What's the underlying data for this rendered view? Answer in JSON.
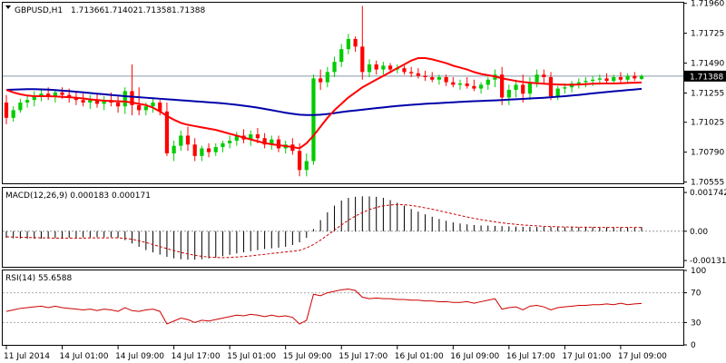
{
  "chart_data": [
    {
      "type": "candlestick",
      "symbol": "GBPUSD,H1",
      "ohlc_readout": [
        "1.71366",
        "1.71402",
        "1.71358",
        "1.71388"
      ],
      "current_price": 1.71388,
      "current_price_label": "1.71388",
      "ylim": [
        1.70545,
        1.71965
      ],
      "y_ticks": [
        1.7196,
        1.71725,
        1.7149,
        1.71255,
        1.71025,
        1.7079,
        1.70555
      ],
      "y_tick_labels": [
        "1.71960",
        "1.71725",
        "1.71490",
        "1.71255",
        "1.71025",
        "1.70790",
        "1.70555"
      ],
      "x_tick_labels": [
        "11 Jul 2014",
        "14 Jul 01:00",
        "14 Jul 09:00",
        "14 Jul 17:00",
        "15 Jul 01:00",
        "15 Jul 09:00",
        "15 Jul 17:00",
        "16 Jul 01:00",
        "16 Jul 09:00",
        "16 Jul 17:00",
        "17 Jul 01:00",
        "17 Jul 09:00"
      ],
      "x_tick_bar_index": [
        0,
        8,
        16,
        24,
        32,
        40,
        48,
        56,
        64,
        72,
        80,
        88
      ],
      "colors": {
        "bull": "#00cc00",
        "bear": "#ff0000",
        "fast_ma": "#ff0000",
        "slow_ma": "#0000aa",
        "price_line": "#8899aa"
      },
      "candles": [
        [
          1.7118,
          1.7124,
          1.7101,
          1.7106
        ],
        [
          1.7106,
          1.7115,
          1.7103,
          1.7112
        ],
        [
          1.7112,
          1.7121,
          1.711,
          1.7118
        ],
        [
          1.7118,
          1.7124,
          1.7114,
          1.712
        ],
        [
          1.712,
          1.7127,
          1.7115,
          1.7123
        ],
        [
          1.7123,
          1.7129,
          1.7119,
          1.7125
        ],
        [
          1.7125,
          1.713,
          1.712,
          1.7123
        ],
        [
          1.7123,
          1.7128,
          1.7118,
          1.7126
        ],
        [
          1.7126,
          1.713,
          1.7121,
          1.7124
        ],
        [
          1.7124,
          1.7129,
          1.7118,
          1.7122
        ],
        [
          1.7122,
          1.7127,
          1.7116,
          1.712
        ],
        [
          1.712,
          1.7125,
          1.7115,
          1.7118
        ],
        [
          1.7118,
          1.7124,
          1.7113,
          1.712
        ],
        [
          1.712,
          1.7125,
          1.7114,
          1.7117
        ],
        [
          1.7117,
          1.7123,
          1.7112,
          1.712
        ],
        [
          1.712,
          1.7126,
          1.7115,
          1.7118
        ],
        [
          1.7118,
          1.7124,
          1.711,
          1.7115
        ],
        [
          1.7115,
          1.713,
          1.7109,
          1.7127
        ],
        [
          1.7127,
          1.7148,
          1.7108,
          1.7116
        ],
        [
          1.7116,
          1.713,
          1.7108,
          1.7112
        ],
        [
          1.7112,
          1.7118,
          1.7108,
          1.7115
        ],
        [
          1.7115,
          1.7122,
          1.711,
          1.7118
        ],
        [
          1.7118,
          1.712,
          1.7108,
          1.7111
        ],
        [
          1.7111,
          1.7118,
          1.7076,
          1.7078
        ],
        [
          1.7078,
          1.7088,
          1.7072,
          1.7084
        ],
        [
          1.7084,
          1.7096,
          1.708,
          1.7092
        ],
        [
          1.7092,
          1.7099,
          1.708,
          1.7085
        ],
        [
          1.7085,
          1.709,
          1.7072,
          1.7076
        ],
        [
          1.7076,
          1.7084,
          1.7072,
          1.7082
        ],
        [
          1.7082,
          1.7086,
          1.7075,
          1.7079
        ],
        [
          1.7079,
          1.7086,
          1.7076,
          1.7083
        ],
        [
          1.7083,
          1.7088,
          1.7079,
          1.7086
        ],
        [
          1.7086,
          1.7092,
          1.7082,
          1.7088
        ],
        [
          1.7088,
          1.7095,
          1.7084,
          1.7092
        ],
        [
          1.7092,
          1.7097,
          1.7086,
          1.7089
        ],
        [
          1.7089,
          1.7096,
          1.7084,
          1.7093
        ],
        [
          1.7093,
          1.7098,
          1.7086,
          1.709
        ],
        [
          1.709,
          1.7094,
          1.7082,
          1.7085
        ],
        [
          1.7085,
          1.7092,
          1.7081,
          1.7089
        ],
        [
          1.7089,
          1.7092,
          1.7079,
          1.7082
        ],
        [
          1.7082,
          1.7088,
          1.7078,
          1.7085
        ],
        [
          1.7085,
          1.709,
          1.7077,
          1.708
        ],
        [
          1.708,
          1.7086,
          1.706,
          1.7065
        ],
        [
          1.7065,
          1.7078,
          1.706,
          1.7072
        ],
        [
          1.7072,
          1.714,
          1.7069,
          1.7137
        ],
        [
          1.7137,
          1.7144,
          1.7128,
          1.7134
        ],
        [
          1.7134,
          1.7146,
          1.713,
          1.7142
        ],
        [
          1.7142,
          1.7154,
          1.7138,
          1.715
        ],
        [
          1.715,
          1.7164,
          1.7146,
          1.716
        ],
        [
          1.716,
          1.7172,
          1.7156,
          1.7168
        ],
        [
          1.7168,
          1.717,
          1.7158,
          1.7162
        ],
        [
          1.7162,
          1.7194,
          1.7136,
          1.7142
        ],
        [
          1.7142,
          1.7152,
          1.7138,
          1.7148
        ],
        [
          1.7148,
          1.7151,
          1.714,
          1.7144
        ],
        [
          1.7144,
          1.715,
          1.714,
          1.7147
        ],
        [
          1.7147,
          1.7149,
          1.7141,
          1.7144
        ],
        [
          1.7144,
          1.7148,
          1.7141,
          1.7145
        ],
        [
          1.7145,
          1.7147,
          1.714,
          1.7142
        ],
        [
          1.7142,
          1.7146,
          1.7138,
          1.7141
        ],
        [
          1.7141,
          1.7145,
          1.7137,
          1.7139
        ],
        [
          1.7139,
          1.7143,
          1.7135,
          1.7138
        ],
        [
          1.7138,
          1.7142,
          1.7134,
          1.7136
        ],
        [
          1.7136,
          1.714,
          1.7132,
          1.7138
        ],
        [
          1.7138,
          1.714,
          1.7131,
          1.7134
        ],
        [
          1.7134,
          1.7138,
          1.713,
          1.7132
        ],
        [
          1.7132,
          1.7136,
          1.7128,
          1.7133
        ],
        [
          1.7133,
          1.7138,
          1.7129,
          1.7131
        ],
        [
          1.7131,
          1.7136,
          1.7127,
          1.7129
        ],
        [
          1.7129,
          1.7134,
          1.7125,
          1.7132
        ],
        [
          1.7132,
          1.7138,
          1.7128,
          1.7136
        ],
        [
          1.7136,
          1.7144,
          1.713,
          1.714
        ],
        [
          1.714,
          1.7146,
          1.7116,
          1.7122
        ],
        [
          1.7122,
          1.7132,
          1.7116,
          1.7128
        ],
        [
          1.7128,
          1.7136,
          1.7122,
          1.7132
        ],
        [
          1.7132,
          1.714,
          1.7118,
          1.7125
        ],
        [
          1.7125,
          1.7138,
          1.712,
          1.7134
        ],
        [
          1.7134,
          1.7144,
          1.713,
          1.714
        ],
        [
          1.714,
          1.7144,
          1.7133,
          1.7138
        ],
        [
          1.7138,
          1.7142,
          1.712,
          1.7123
        ],
        [
          1.7123,
          1.7131,
          1.712,
          1.7129
        ],
        [
          1.7129,
          1.7133,
          1.7125,
          1.713
        ],
        [
          1.713,
          1.7135,
          1.7126,
          1.7133
        ],
        [
          1.7133,
          1.7137,
          1.7129,
          1.7134
        ],
        [
          1.7134,
          1.7138,
          1.713,
          1.7135
        ],
        [
          1.7135,
          1.7139,
          1.7131,
          1.7136
        ],
        [
          1.7136,
          1.714,
          1.7132,
          1.7137
        ],
        [
          1.7137,
          1.7141,
          1.7133,
          1.7135
        ],
        [
          1.7135,
          1.714,
          1.7133,
          1.7138
        ],
        [
          1.7138,
          1.7142,
          1.7134,
          1.7136
        ],
        [
          1.7136,
          1.7141,
          1.7133,
          1.7139
        ],
        [
          1.7139,
          1.7142,
          1.7135,
          1.7137
        ],
        [
          1.71366,
          1.71402,
          1.71358,
          1.71388
        ]
      ],
      "fast_ma": [
        1.7128,
        1.7126,
        1.71245,
        1.71235,
        1.7123,
        1.7123,
        1.7123,
        1.71228,
        1.71225,
        1.71222,
        1.71218,
        1.71212,
        1.71205,
        1.712,
        1.71195,
        1.71192,
        1.7119,
        1.71188,
        1.7118,
        1.7117,
        1.7116,
        1.7114,
        1.7111,
        1.71075,
        1.71045,
        1.7102,
        1.71005,
        1.70995,
        1.70985,
        1.70975,
        1.70965,
        1.7095,
        1.70935,
        1.7092,
        1.70905,
        1.7089,
        1.70875,
        1.70862,
        1.70852,
        1.70845,
        1.70838,
        1.7083,
        1.7082,
        1.7086,
        1.7092,
        1.7099,
        1.7106,
        1.7112,
        1.7117,
        1.7122,
        1.7126,
        1.713,
        1.7133,
        1.7136,
        1.7139,
        1.7142,
        1.7145,
        1.7148,
        1.7151,
        1.7153,
        1.7153,
        1.7152,
        1.71505,
        1.7149,
        1.7147,
        1.71455,
        1.7144,
        1.7142,
        1.71405,
        1.71395,
        1.71385,
        1.7137,
        1.7136,
        1.7135,
        1.71342,
        1.71336,
        1.71332,
        1.71328,
        1.71325,
        1.71322,
        1.7132,
        1.7132,
        1.71322,
        1.71325,
        1.71328,
        1.7133,
        1.7133,
        1.7133,
        1.71332,
        1.71334,
        1.71336,
        1.71338
      ],
      "slow_ma": [
        1.7128,
        1.71282,
        1.71284,
        1.71285,
        1.71285,
        1.71284,
        1.71282,
        1.71278,
        1.71274,
        1.7127,
        1.71265,
        1.7126,
        1.71255,
        1.7125,
        1.71245,
        1.7124,
        1.71235,
        1.7123,
        1.71226,
        1.71222,
        1.71218,
        1.71214,
        1.7121,
        1.71206,
        1.71202,
        1.71198,
        1.71194,
        1.7119,
        1.71186,
        1.71182,
        1.71178,
        1.71174,
        1.71168,
        1.71162,
        1.71155,
        1.71148,
        1.7114,
        1.7113,
        1.7112,
        1.7111,
        1.711,
        1.71092,
        1.71085,
        1.71082,
        1.71082,
        1.71085,
        1.7109,
        1.71097,
        1.71105,
        1.71112,
        1.71118,
        1.71124,
        1.7113,
        1.71136,
        1.71142,
        1.71148,
        1.71153,
        1.71158,
        1.71162,
        1.71166,
        1.7117,
        1.71173,
        1.71176,
        1.71179,
        1.71182,
        1.71185,
        1.71188,
        1.71191,
        1.71193,
        1.71195,
        1.71197,
        1.712,
        1.71203,
        1.71206,
        1.71209,
        1.71212,
        1.71215,
        1.71218,
        1.71222,
        1.71226,
        1.7123,
        1.71235,
        1.7124,
        1.71246,
        1.71252,
        1.71258,
        1.71263,
        1.71268,
        1.71273,
        1.71278,
        1.71283,
        1.71288
      ]
    },
    {
      "type": "bar",
      "title": "MACD(12,26,9) 0.000183 0.000171",
      "ylim": [
        -0.0016,
        0.00195
      ],
      "y_tick_labels": [
        "0.001742",
        "0.00",
        "-0.001318"
      ],
      "y_ticks": [
        0.001742,
        0.0,
        -0.001318
      ],
      "colors": {
        "histogram": "#000000",
        "signal": "#cc0000"
      },
      "macd": [
        -0.0003,
        -0.00032,
        -0.00033,
        -0.00034,
        -0.00034,
        -0.00033,
        -0.00032,
        -0.00031,
        -0.0003,
        -0.0003,
        -0.00029,
        -0.00028,
        -0.00028,
        -0.00027,
        -0.00027,
        -0.00026,
        -0.0003,
        -0.0004,
        -0.00055,
        -0.0007,
        -0.00085,
        -0.00095,
        -0.00105,
        -0.00115,
        -0.00122,
        -0.00126,
        -0.00128,
        -0.00128,
        -0.00126,
        -0.00122,
        -0.00118,
        -0.00112,
        -0.00106,
        -0.001,
        -0.00095,
        -0.0009,
        -0.00085,
        -0.0008,
        -0.00077,
        -0.00074,
        -0.0007,
        -0.00062,
        -0.0005,
        -0.0003,
        0.0001,
        0.0005,
        0.00085,
        0.00115,
        0.00138,
        0.0015,
        0.00155,
        0.00157,
        0.00157,
        0.00155,
        0.0015,
        0.0014,
        0.00128,
        0.00115,
        0.001,
        0.00088,
        0.00076,
        0.00065,
        0.00055,
        0.00047,
        0.0004,
        0.00035,
        0.00031,
        0.00028,
        0.00026,
        0.00025,
        0.00024,
        0.00023,
        0.00022,
        0.00021,
        0.0002,
        0.0002,
        0.00019,
        0.00019,
        0.00019,
        0.00018,
        0.00018,
        0.00018,
        0.00018,
        0.00018,
        0.00018,
        0.00018,
        0.00018,
        0.00018,
        0.00018,
        0.00018,
        0.00018,
        0.000183
      ],
      "signal": [
        -0.00025,
        -0.00026,
        -0.00027,
        -0.00028,
        -0.00029,
        -0.0003,
        -0.0003,
        -0.00031,
        -0.00031,
        -0.00031,
        -0.00031,
        -0.00031,
        -0.0003,
        -0.0003,
        -0.0003,
        -0.00029,
        -0.0003,
        -0.00032,
        -0.00036,
        -0.00043,
        -0.00051,
        -0.0006,
        -0.00069,
        -0.00078,
        -0.00087,
        -0.00095,
        -0.00102,
        -0.00108,
        -0.00113,
        -0.00116,
        -0.00118,
        -0.00119,
        -0.00118,
        -0.00116,
        -0.00114,
        -0.00111,
        -0.00107,
        -0.00104,
        -0.001,
        -0.00097,
        -0.00093,
        -0.0009,
        -0.00086,
        -0.00075,
        -0.0006,
        -0.0004,
        -0.00018,
        5e-05,
        0.00028,
        0.0005,
        0.00068,
        0.00084,
        0.00097,
        0.00107,
        0.00114,
        0.00118,
        0.0012,
        0.00119,
        0.00116,
        0.00111,
        0.00105,
        0.00099,
        0.00092,
        0.00085,
        0.00078,
        0.00071,
        0.00064,
        0.00058,
        0.00052,
        0.00047,
        0.00042,
        0.00038,
        0.00034,
        0.00031,
        0.00028,
        0.00026,
        0.00024,
        0.00022,
        0.00021,
        0.0002,
        0.00019,
        0.00019,
        0.00018,
        0.00018,
        0.00018,
        0.00017,
        0.00017,
        0.00017,
        0.00017,
        0.00017,
        0.00017,
        0.000171
      ]
    },
    {
      "type": "line",
      "title": "RSI(14) 55.6588",
      "ylim": [
        0,
        100
      ],
      "y_ticks": [
        100,
        70,
        30,
        0
      ],
      "y_tick_labels": [
        "100",
        "70",
        "30",
        "0"
      ],
      "levels": [
        70,
        30
      ],
      "colors": {
        "line": "#cc0000",
        "levels": "#aaaaaa"
      },
      "rsi": [
        45,
        47,
        49,
        50,
        51,
        52,
        50,
        52,
        50,
        49,
        48,
        47,
        48,
        46,
        48,
        47,
        45,
        50,
        46,
        45,
        47,
        48,
        45,
        28,
        32,
        36,
        34,
        30,
        33,
        32,
        34,
        36,
        38,
        40,
        39,
        41,
        40,
        38,
        40,
        38,
        39,
        37,
        28,
        33,
        68,
        66,
        70,
        72,
        74,
        75,
        73,
        64,
        62,
        63,
        62,
        62,
        61,
        61,
        60,
        60,
        59,
        59,
        58,
        58,
        57,
        57,
        58,
        56,
        58,
        60,
        62,
        48,
        50,
        51,
        47,
        52,
        53,
        51,
        47,
        50,
        51,
        52,
        53,
        53,
        54,
        54,
        55,
        54,
        56,
        54,
        55,
        55.6588
      ]
    }
  ]
}
